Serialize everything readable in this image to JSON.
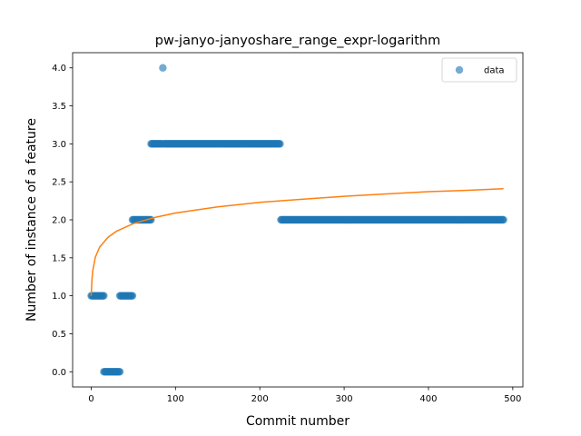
{
  "chart_data": {
    "type": "scatter",
    "title": "pw-janyo-janyoshare_range_expr-logarithm",
    "xlabel": "Commit number",
    "ylabel": "Number of instance of a feature",
    "xlim": [
      -22,
      512
    ],
    "ylim": [
      -0.2,
      4.2
    ],
    "xticks": [
      0,
      100,
      200,
      300,
      400,
      500
    ],
    "yticks": [
      0.0,
      0.5,
      1.0,
      1.5,
      2.0,
      2.5,
      3.0,
      3.5,
      4.0
    ],
    "xtick_labels": [
      "0",
      "100",
      "200",
      "300",
      "400",
      "500"
    ],
    "ytick_labels": [
      "0.0",
      "0.5",
      "1.0",
      "1.5",
      "2.0",
      "2.5",
      "3.0",
      "3.5",
      "4.0"
    ],
    "legend": {
      "position": "top-right",
      "entries": [
        "data"
      ]
    },
    "grid": false,
    "series": [
      {
        "name": "data",
        "kind": "scatter",
        "color": "#1f77b4",
        "segments": [
          {
            "x_start": 0,
            "x_end": 15,
            "y": 1.0
          },
          {
            "x_start": 15,
            "x_end": 34,
            "y": 0.0
          },
          {
            "x_start": 34,
            "x_end": 49,
            "y": 1.0
          },
          {
            "x_start": 49,
            "x_end": 71,
            "y": 2.0
          },
          {
            "x_start": 71,
            "x_end": 84,
            "y": 3.0
          },
          {
            "x_start": 85,
            "x_end": 85,
            "y": 4.0
          },
          {
            "x_start": 86,
            "x_end": 224,
            "y": 3.0
          },
          {
            "x_start": 225,
            "x_end": 489,
            "y": 2.0
          }
        ]
      },
      {
        "name": "",
        "kind": "line",
        "color": "#ff7f0e",
        "model": "logarithmic",
        "x_range": [
          0,
          489
        ],
        "points": [
          [
            0,
            1.0
          ],
          [
            1,
            1.22
          ],
          [
            2,
            1.34
          ],
          [
            5,
            1.51
          ],
          [
            10,
            1.64
          ],
          [
            20,
            1.77
          ],
          [
            30,
            1.85
          ],
          [
            50,
            1.95
          ],
          [
            75,
            2.03
          ],
          [
            100,
            2.09
          ],
          [
            150,
            2.17
          ],
          [
            200,
            2.23
          ],
          [
            250,
            2.27
          ],
          [
            300,
            2.31
          ],
          [
            350,
            2.34
          ],
          [
            400,
            2.37
          ],
          [
            450,
            2.39
          ],
          [
            489,
            2.41
          ]
        ]
      }
    ]
  }
}
